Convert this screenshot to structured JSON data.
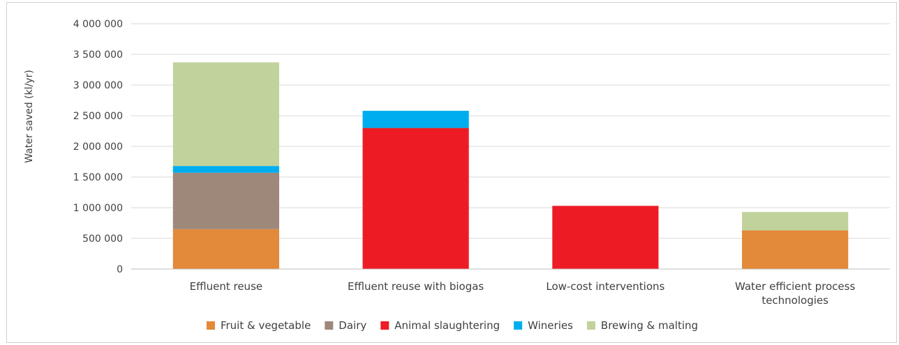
{
  "chart_data": {
    "type": "bar",
    "stacked": true,
    "ylabel": "Water saved (kl/yr)",
    "ylim": [
      0,
      4000000
    ],
    "ytick_step": 500000,
    "ytick_labels": [
      "0",
      "500 000",
      "1 000 000",
      "1 500 000",
      "2 000 000",
      "2 500 000",
      "3 000 000",
      "3 500 000",
      "4 000 000"
    ],
    "grid": true,
    "legend_position": "bottom",
    "categories": [
      [
        "Effluent reuse"
      ],
      [
        "Effluent reuse with biogas"
      ],
      [
        "Low-cost interventions"
      ],
      [
        "Water efficient process",
        "technologies"
      ]
    ],
    "series": [
      {
        "name": "Fruit & vegetable",
        "color": "#E2893A",
        "values": [
          650000,
          0,
          0,
          630000
        ]
      },
      {
        "name": "Dairy",
        "color": "#9E887A",
        "values": [
          920000,
          0,
          0,
          0
        ]
      },
      {
        "name": "Animal slaughtering",
        "color": "#ED1C24",
        "values": [
          0,
          2300000,
          1030000,
          0
        ]
      },
      {
        "name": "Wineries",
        "color": "#00AEEF",
        "values": [
          110000,
          280000,
          0,
          0
        ]
      },
      {
        "name": "Brewing & malting",
        "color": "#C1D29C",
        "values": [
          1690000,
          0,
          0,
          300000
        ]
      }
    ]
  }
}
